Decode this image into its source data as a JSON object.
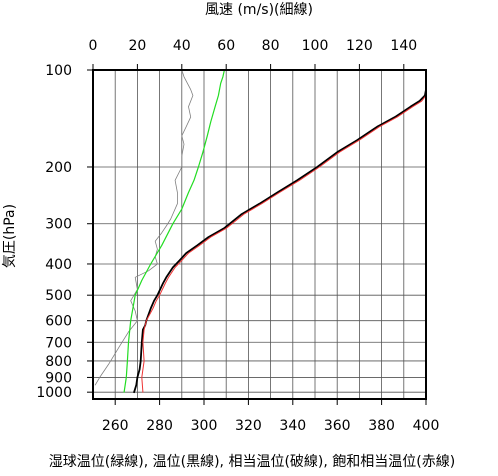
{
  "chart_data": {
    "type": "line",
    "top_axis_label": "風速 (m/s)(細線)",
    "y_axis_label": "気圧(hPa)",
    "bottom_axis_label": "湿球温位(緑線), 温位(黒線), 相当温位(破線), 飽和相当温位(赤線)",
    "x_axis": {
      "range": [
        250,
        400
      ],
      "scale": "linear",
      "ticks": [
        260,
        280,
        300,
        320,
        340,
        360,
        380,
        400
      ],
      "tick_labels": [
        "260",
        "280",
        "300",
        "320",
        "340",
        "360",
        "380",
        "400"
      ]
    },
    "top_axis": {
      "range": [
        0,
        150
      ],
      "scale": "linear",
      "ticks": [
        0,
        20,
        40,
        60,
        80,
        100,
        120,
        140
      ],
      "tick_labels": [
        "0",
        "20",
        "40",
        "60",
        "80",
        "100",
        "120",
        "140"
      ]
    },
    "y_axis": {
      "range": [
        1050,
        100
      ],
      "scale": "log",
      "inverted": true,
      "ticks": [
        100,
        200,
        300,
        400,
        500,
        600,
        700,
        800,
        900,
        1000
      ],
      "tick_labels": [
        "100",
        "200",
        "300",
        "400",
        "500",
        "600",
        "700",
        "800",
        "900",
        "1000"
      ]
    },
    "grid": true,
    "series": [
      {
        "name": "風速",
        "axis": "top",
        "color": "#808080",
        "x": [
          1,
          3,
          7,
          12,
          16,
          20,
          19,
          17,
          20,
          19,
          25,
          29,
          28,
          29,
          28,
          31,
          33,
          35,
          38,
          38,
          37,
          40,
          40,
          41,
          40,
          42,
          44,
          43,
          45,
          44,
          41,
          40
        ],
        "y": [
          950,
          900,
          820,
          720,
          650,
          600,
          560,
          520,
          480,
          440,
          420,
          400,
          380,
          360,
          340,
          320,
          305,
          290,
          260,
          240,
          220,
          200,
          185,
          170,
          160,
          150,
          140,
          130,
          120,
          115,
          105,
          100
        ]
      },
      {
        "name": "湿球温位",
        "axis": "bottom",
        "color": "#22dd22",
        "x": [
          264,
          265,
          265.5,
          266,
          267,
          269,
          272,
          276,
          281,
          286,
          290,
          293,
          295.5,
          297.5,
          299.5,
          301.5,
          303,
          305,
          306.5,
          307.5,
          308.5,
          309.2
        ],
        "y": [
          1000,
          900,
          800,
          700,
          600,
          500,
          450,
          400,
          350,
          300,
          270,
          240,
          220,
          200,
          180,
          160,
          145,
          130,
          120,
          110,
          105,
          100
        ]
      },
      {
        "name": "温位",
        "axis": "bottom",
        "color": "#000000",
        "x": [
          268.5,
          269.5,
          270,
          271,
          271.5,
          272,
          272.5,
          273.5,
          274,
          276,
          277.5,
          279,
          281.5,
          283,
          286,
          289,
          292,
          297,
          302,
          309,
          317,
          325,
          333,
          342,
          351,
          360,
          369,
          378,
          386,
          393,
          397,
          399.5,
          400
        ],
        "y": [
          1000,
          950,
          900,
          850,
          800,
          700,
          640,
          620,
          600,
          550,
          520,
          500,
          460,
          440,
          410,
          390,
          370,
          350,
          330,
          310,
          280,
          260,
          240,
          220,
          200,
          180,
          165,
          150,
          140,
          130,
          125,
          120,
          115
        ]
      },
      {
        "name": "相当温位",
        "axis": "bottom",
        "color": "#000000",
        "dashed": true,
        "x": [
          268.5,
          269.5,
          270,
          271,
          271.5,
          272,
          272.5,
          273.5,
          274,
          276,
          277.5,
          279,
          281.5,
          283,
          286,
          289,
          292,
          297,
          302,
          309,
          317,
          325,
          333,
          342,
          351,
          360,
          369,
          378,
          386,
          393,
          397,
          399.5,
          400
        ],
        "y": [
          1000,
          950,
          900,
          850,
          800,
          700,
          640,
          620,
          600,
          550,
          520,
          500,
          460,
          440,
          410,
          390,
          370,
          350,
          330,
          310,
          280,
          260,
          240,
          220,
          200,
          180,
          165,
          150,
          140,
          130,
          125,
          120,
          115
        ]
      },
      {
        "name": "飽和相当温位",
        "axis": "bottom",
        "color": "#ee3333",
        "x": [
          272.5,
          272,
          273,
          272.5,
          273,
          274,
          277,
          278.5,
          280,
          282.5,
          284,
          287,
          290,
          293,
          298,
          303,
          310,
          318,
          326,
          334,
          343,
          352,
          361,
          370,
          379,
          387,
          394,
          398,
          400
        ],
        "y": [
          1000,
          900,
          800,
          700,
          640,
          600,
          550,
          520,
          500,
          460,
          440,
          410,
          390,
          370,
          350,
          330,
          310,
          280,
          260,
          240,
          220,
          200,
          180,
          165,
          150,
          140,
          130,
          125,
          120
        ]
      }
    ]
  },
  "colors": {
    "grid": "#555555",
    "frame": "#000000",
    "background": "#ffffff"
  }
}
